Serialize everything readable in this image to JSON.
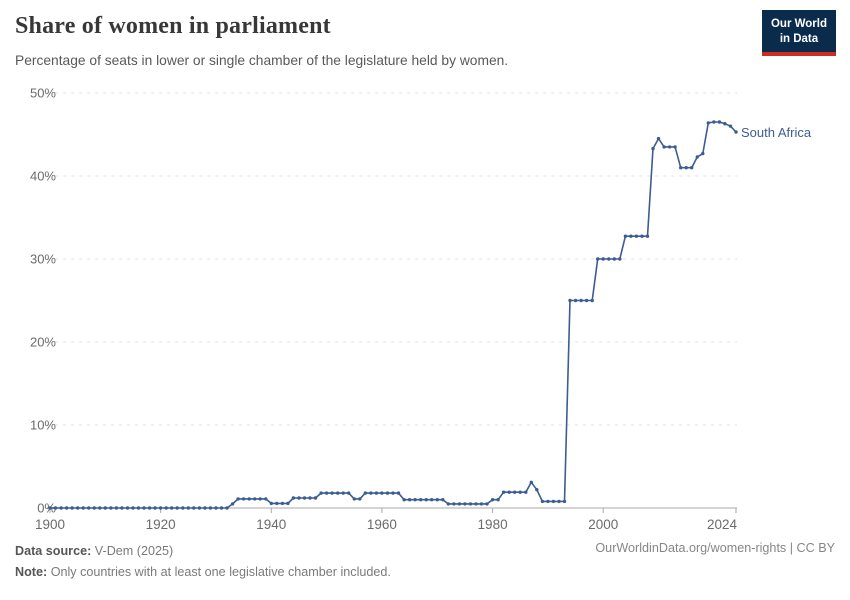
{
  "header": {
    "title": "Share of women in parliament",
    "subtitle": "Percentage of seats in lower or single chamber of the legislature held by women."
  },
  "logo": {
    "line1": "Our World",
    "line2": "in Data",
    "bg_color": "#0b2b4d",
    "accent_color": "#cc2c22"
  },
  "chart_data": {
    "type": "line",
    "title": "Share of women in parliament",
    "subtitle": "Percentage of seats in lower or single chamber of the legislature held by women.",
    "xlabel": "",
    "ylabel": "",
    "xlim": [
      1899,
      2024.5
    ],
    "ylim": [
      0,
      50
    ],
    "grid": "horizontal-dashed",
    "legend_position": "end-of-line",
    "line_color": "#3d5c94",
    "marker": "circle",
    "axis_color": "#a8a8a8",
    "grid_color": "#e2e2e2",
    "tick_label_color": "#6b6b6b",
    "yticks": [
      "0%",
      "10%",
      "20%",
      "30%",
      "40%",
      "50%"
    ],
    "xticks": [
      1900,
      1920,
      1940,
      1960,
      1980,
      2000,
      2024
    ],
    "series": [
      {
        "name": "South Africa",
        "x": [
          1900,
          1901,
          1902,
          1903,
          1904,
          1905,
          1906,
          1907,
          1908,
          1909,
          1910,
          1911,
          1912,
          1913,
          1914,
          1915,
          1916,
          1917,
          1918,
          1919,
          1920,
          1921,
          1922,
          1923,
          1924,
          1925,
          1926,
          1927,
          1928,
          1929,
          1930,
          1931,
          1932,
          1933,
          1934,
          1935,
          1936,
          1937,
          1938,
          1939,
          1940,
          1941,
          1942,
          1943,
          1944,
          1945,
          1946,
          1947,
          1948,
          1949,
          1950,
          1951,
          1952,
          1953,
          1954,
          1955,
          1956,
          1957,
          1958,
          1959,
          1960,
          1961,
          1962,
          1963,
          1964,
          1965,
          1966,
          1967,
          1968,
          1969,
          1970,
          1971,
          1972,
          1973,
          1974,
          1975,
          1976,
          1977,
          1978,
          1979,
          1980,
          1981,
          1982,
          1983,
          1984,
          1985,
          1986,
          1987,
          1988,
          1989,
          1990,
          1991,
          1992,
          1993,
          1994,
          1995,
          1996,
          1997,
          1998,
          1999,
          2000,
          2001,
          2002,
          2003,
          2004,
          2005,
          2006,
          2007,
          2008,
          2009,
          2010,
          2011,
          2012,
          2013,
          2014,
          2015,
          2016,
          2017,
          2018,
          2019,
          2020,
          2021,
          2022,
          2023,
          2024
        ],
        "values": [
          0,
          0,
          0,
          0,
          0,
          0,
          0,
          0,
          0,
          0,
          0,
          0,
          0,
          0,
          0,
          0,
          0,
          0,
          0,
          0,
          0,
          0,
          0,
          0,
          0,
          0,
          0,
          0,
          0,
          0,
          0,
          0,
          0,
          0.5,
          1.1,
          1.1,
          1.1,
          1.1,
          1.1,
          1.1,
          0.55,
          0.55,
          0.55,
          0.55,
          1.2,
          1.2,
          1.2,
          1.2,
          1.2,
          1.8,
          1.8,
          1.8,
          1.8,
          1.8,
          1.8,
          1.1,
          1.1,
          1.8,
          1.8,
          1.8,
          1.8,
          1.8,
          1.8,
          1.8,
          1.0,
          1.0,
          1.0,
          1.0,
          1.0,
          1.0,
          1.0,
          1.0,
          0.5,
          0.5,
          0.5,
          0.5,
          0.5,
          0.5,
          0.5,
          0.5,
          1.0,
          1.0,
          1.9,
          1.9,
          1.9,
          1.9,
          1.9,
          3.1,
          2.2,
          0.8,
          0.8,
          0.8,
          0.8,
          0.8,
          25,
          25,
          25,
          25,
          25,
          30,
          30,
          30,
          30,
          30,
          32.75,
          32.75,
          32.75,
          32.75,
          32.75,
          43.3,
          44.5,
          43.5,
          43.5,
          43.5,
          41,
          41,
          41,
          42.3,
          42.7,
          46.4,
          46.5,
          46.5,
          46.3,
          46.0,
          45.3
        ]
      }
    ]
  },
  "footer": {
    "source_label": "Data source:",
    "source_value": "V-Dem (2025)",
    "note_label": "Note:",
    "note_value": "Only countries with at least one legislative chamber included.",
    "right": "OurWorldinData.org/women-rights | CC BY"
  }
}
